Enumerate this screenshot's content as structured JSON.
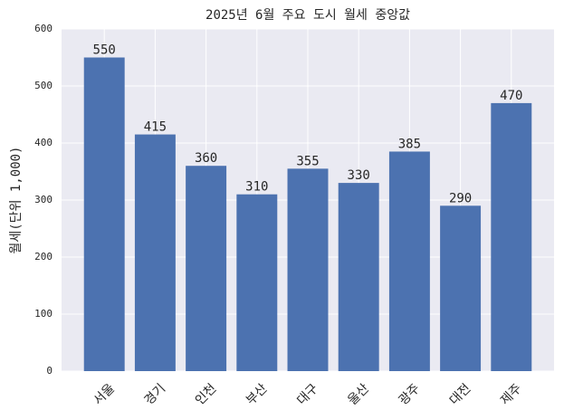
{
  "chart_data": {
    "type": "bar",
    "title": "2025년 6월 주요 도시 월세 중앙값",
    "y_label": "월세(단위 1,000)",
    "categories": [
      "서울",
      "경기",
      "인천",
      "부산",
      "대구",
      "울산",
      "광주",
      "대전",
      "제주"
    ],
    "values": [
      550,
      415,
      360,
      310,
      355,
      330,
      385,
      290,
      470
    ],
    "color": "#4c72b0",
    "ylim": [
      0,
      600
    ],
    "yticks": [
      0,
      100,
      200,
      300,
      400,
      500,
      600
    ],
    "grid": true
  }
}
